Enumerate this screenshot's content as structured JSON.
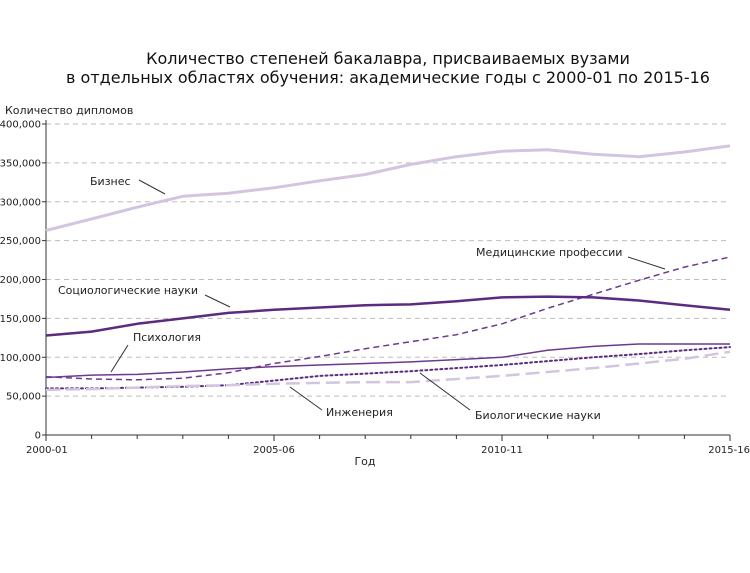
{
  "chart_data": {
    "type": "line",
    "title_lines": [
      "Количество степеней бакалавра, присваиваемых вузами",
      "в отдельных областях обучения: академические годы с 2000-01 по 2015-16"
    ],
    "xlabel": "Год",
    "ylabel": "Количество дипломов",
    "x": [
      "2000-01",
      "2001-02",
      "2002-03",
      "2003-04",
      "2004-05",
      "2005-06",
      "2006-07",
      "2007-08",
      "2008-09",
      "2009-10",
      "2010-11",
      "2011-12",
      "2012-13",
      "2013-14",
      "2014-15",
      "2015-16"
    ],
    "x_tick_labels": [
      "2000-01",
      "2005-06",
      "2010-11",
      "2015-16"
    ],
    "ylim": [
      0,
      400000
    ],
    "y_ticks": [
      0,
      50000,
      100000,
      150000,
      200000,
      250000,
      300000,
      350000,
      400000
    ],
    "y_tick_labels": [
      "0",
      "50,000",
      "100,000",
      "150,000",
      "200,000",
      "250,000",
      "300,000",
      "350,000",
      "400,000"
    ],
    "grid": "horizontal dashed",
    "series": [
      {
        "name": "Бизнес",
        "style": "solid",
        "color": "#d3c4e0",
        "width": 3,
        "values": [
          263000,
          278000,
          293000,
          307000,
          311000,
          318000,
          327000,
          335000,
          348000,
          358000,
          365000,
          367000,
          361000,
          358000,
          364000,
          372000
        ]
      },
      {
        "name": "Медицинские профессии",
        "style": "dashed",
        "color": "#6b3a8f",
        "width": 1.5,
        "values": [
          75000,
          72000,
          71000,
          73000,
          80000,
          92000,
          101000,
          111000,
          120000,
          129000,
          143000,
          163000,
          181000,
          199000,
          216000,
          229000
        ]
      },
      {
        "name": "Социологические науки",
        "style": "solid",
        "color": "#5a2b7e",
        "width": 2.5,
        "values": [
          128000,
          133000,
          143000,
          150000,
          157000,
          161000,
          164000,
          167000,
          168000,
          172000,
          177000,
          178000,
          177000,
          173000,
          167000,
          161000
        ]
      },
      {
        "name": "Психология",
        "style": "solid",
        "color": "#6b3a8f",
        "width": 1.5,
        "values": [
          74000,
          77000,
          78000,
          81000,
          85000,
          88000,
          90000,
          92000,
          94000,
          97000,
          100000,
          109000,
          114000,
          117000,
          117000,
          117000
        ]
      },
      {
        "name": "Биологические науки",
        "style": "dotted",
        "color": "#5a2b7e",
        "width": 2,
        "values": [
          60000,
          60000,
          61000,
          62000,
          64000,
          70000,
          76000,
          79000,
          82000,
          86000,
          90000,
          95000,
          100000,
          104000,
          109000,
          113000
        ]
      },
      {
        "name": "Инженерия",
        "style": "longdash",
        "color": "#d3c4e0",
        "width": 2.5,
        "values": [
          58000,
          59000,
          61000,
          63000,
          64000,
          66000,
          67000,
          68000,
          68000,
          72000,
          76000,
          81000,
          86000,
          92000,
          98000,
          107000
        ]
      }
    ]
  }
}
